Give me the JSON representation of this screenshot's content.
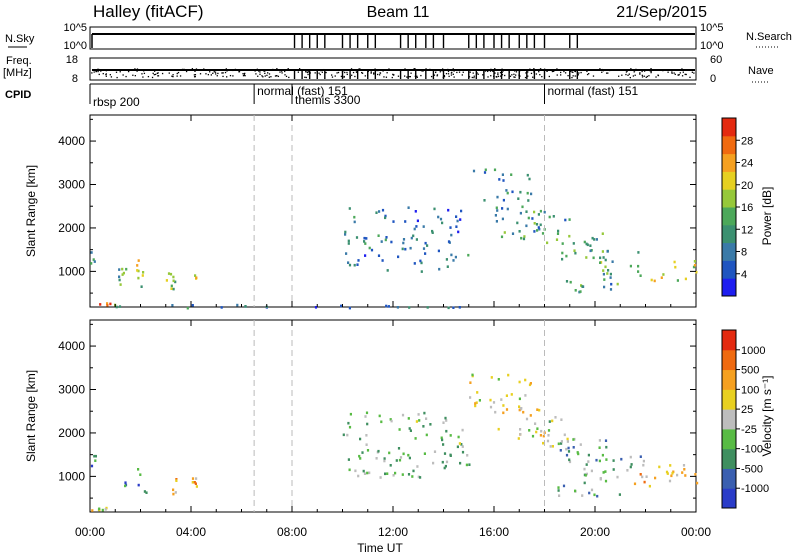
{
  "header": {
    "station": "Halley (fitACF)",
    "beam": "Beam 11",
    "date": "21/Sep/2015"
  },
  "top_panels": {
    "nsky_label": "N.Sky",
    "nsky_ticks": [
      "10^5",
      "10^0"
    ],
    "nsearch_label": "N.Search",
    "nsearch_ticks": [
      "10^5",
      "10^0"
    ],
    "freq_label": "Freq.",
    "freq_unit": "[MHz]",
    "freq_ticks": [
      "18",
      "8"
    ],
    "nave_label": "Nave",
    "nave_ticks": [
      "60",
      "0"
    ],
    "cpid_label": "CPID",
    "cpid_segments": [
      {
        "start_h": 0.0,
        "label": "rbsp 200"
      },
      {
        "start_h": 6.5,
        "label": "normal (fast) 151"
      },
      {
        "start_h": 8.0,
        "label": "themis 3300"
      },
      {
        "start_h": 18.0,
        "label": "normal (fast) 151"
      }
    ],
    "scan_spike_hours": [
      8.1,
      8.4,
      8.7,
      9.0,
      9.3,
      10.0,
      10.3,
      10.6,
      11.0,
      11.3,
      12.3,
      12.6,
      12.9,
      13.3,
      13.6,
      14.0,
      15.0,
      15.3,
      15.6,
      16.0,
      16.3,
      16.6,
      17.0,
      17.3,
      17.6,
      18.0,
      19.0,
      19.3
    ]
  },
  "time_axis": {
    "label": "Time UT",
    "range_h": [
      0,
      24
    ],
    "ticks": [
      "00:00",
      "04:00",
      "08:00",
      "12:00",
      "16:00",
      "20:00",
      "00:00"
    ]
  },
  "cpid_change_hours": [
    6.5,
    8.0,
    18.0
  ],
  "chart_data": [
    {
      "type": "heatmap",
      "name": "power",
      "xlabel": "Time UT",
      "ylabel": "Slant Range [km]",
      "xlim": [
        0,
        24
      ],
      "ylim": [
        180,
        4600
      ],
      "yticks": [
        1000,
        2000,
        3000,
        4000
      ],
      "colorbar": {
        "label": "Power [dB]",
        "ticks": [
          "28",
          "24",
          "20",
          "16",
          "12",
          "8",
          "4"
        ],
        "colors": [
          "#1e1ef0",
          "#1f55c0",
          "#3a7aa8",
          "#3b9070",
          "#4ca85a",
          "#96c83a",
          "#e6d020",
          "#f5a020",
          "#f06a10",
          "#e42a10"
        ]
      },
      "patches": [
        {
          "t": [
            0.0,
            0.8
          ],
          "r": [
            180,
            300
          ],
          "level": 0.85
        },
        {
          "t": [
            0.9,
            1.3
          ],
          "r": [
            180,
            280
          ],
          "level": 0.5
        },
        {
          "t": [
            0.0,
            0.25
          ],
          "r": [
            1200,
            1500
          ],
          "level": 0.35
        },
        {
          "t": [
            1.0,
            1.4
          ],
          "r": [
            600,
            1100
          ],
          "level": 0.4
        },
        {
          "t": [
            1.8,
            2.2
          ],
          "r": [
            600,
            1300
          ],
          "level": 0.55
        },
        {
          "t": [
            3.0,
            3.4
          ],
          "r": [
            600,
            1000
          ],
          "level": 0.5
        },
        {
          "t": [
            4.0,
            4.2
          ],
          "r": [
            700,
            1000
          ],
          "level": 0.6
        },
        {
          "t": [
            2.5,
            6.5
          ],
          "r": [
            180,
            260
          ],
          "level": 0.3
        },
        {
          "t": [
            6.5,
            12.0
          ],
          "r": [
            180,
            240
          ],
          "level": 0.2
        },
        {
          "t": [
            12.0,
            15.0
          ],
          "r": [
            180,
            220
          ],
          "level": 0.25
        },
        {
          "t": [
            15.0,
            17.5
          ],
          "r": [
            2600,
            3400
          ],
          "level": 0.3
        },
        {
          "t": [
            16.0,
            18.0
          ],
          "r": [
            1800,
            2600
          ],
          "level": 0.35
        },
        {
          "t": [
            17.0,
            19.0
          ],
          "r": [
            1700,
            2400
          ],
          "level": 0.35
        },
        {
          "t": [
            18.0,
            20.5
          ],
          "r": [
            1300,
            1900
          ],
          "level": 0.4
        },
        {
          "t": [
            19.5,
            22.0
          ],
          "r": [
            900,
            1500
          ],
          "level": 0.45
        },
        {
          "t": [
            21.5,
            24.0
          ],
          "r": [
            800,
            1300
          ],
          "level": 0.6
        },
        {
          "t": [
            18.5,
            21.0
          ],
          "r": [
            550,
            900
          ],
          "level": 0.35
        },
        {
          "t": [
            10.0,
            15.0
          ],
          "r": [
            1000,
            2500
          ],
          "level": 0.25
        }
      ]
    },
    {
      "type": "heatmap",
      "name": "velocity",
      "xlabel": "Time UT",
      "ylabel": "Slant Range [km]",
      "xlim": [
        0,
        24
      ],
      "ylim": [
        180,
        4600
      ],
      "yticks": [
        1000,
        2000,
        3000,
        4000
      ],
      "colorbar": {
        "label": "Velocity [m s⁻¹]",
        "ticks": [
          "1000",
          "500",
          "100",
          "25",
          "-25",
          "-100",
          "-500",
          "-1000"
        ],
        "colors": [
          "#2a3cc8",
          "#3a5fb0",
          "#3f8f60",
          "#58bb44",
          "#bdbdbd",
          "#e8d020",
          "#f5a020",
          "#ef6a10",
          "#e42a10"
        ]
      },
      "patches": [
        {
          "t": [
            0.0,
            0.8
          ],
          "r": [
            180,
            300
          ],
          "level": 0.55
        },
        {
          "t": [
            0.0,
            0.25
          ],
          "r": [
            1200,
            1500
          ],
          "level": 0.2
        },
        {
          "t": [
            1.0,
            1.4
          ],
          "r": [
            600,
            1100
          ],
          "level": 0.25
        },
        {
          "t": [
            1.8,
            2.2
          ],
          "r": [
            600,
            1300
          ],
          "level": 0.2
        },
        {
          "t": [
            3.0,
            3.4
          ],
          "r": [
            600,
            1000
          ],
          "level": 0.65
        },
        {
          "t": [
            4.0,
            4.2
          ],
          "r": [
            700,
            1000
          ],
          "level": 0.7
        },
        {
          "t": [
            15.0,
            17.5
          ],
          "r": [
            2600,
            3400
          ],
          "level": 0.55
        },
        {
          "t": [
            16.0,
            18.0
          ],
          "r": [
            1800,
            2600
          ],
          "level": 0.6
        },
        {
          "t": [
            17.0,
            19.0
          ],
          "r": [
            1700,
            2400
          ],
          "level": 0.45
        },
        {
          "t": [
            18.0,
            20.5
          ],
          "r": [
            1300,
            1900
          ],
          "level": 0.35
        },
        {
          "t": [
            19.5,
            22.0
          ],
          "r": [
            900,
            1500
          ],
          "level": 0.35
        },
        {
          "t": [
            21.5,
            24.0
          ],
          "r": [
            800,
            1300
          ],
          "level": 0.65
        },
        {
          "t": [
            18.5,
            21.0
          ],
          "r": [
            550,
            900
          ],
          "level": 0.35
        },
        {
          "t": [
            10.0,
            15.0
          ],
          "r": [
            1000,
            2500
          ],
          "level": 0.4
        }
      ]
    }
  ]
}
